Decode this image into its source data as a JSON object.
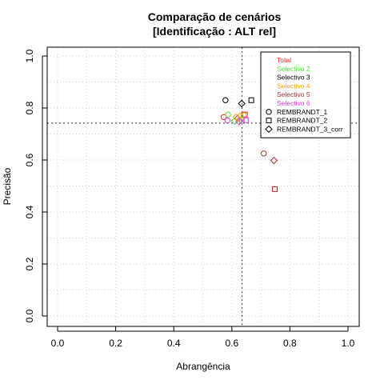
{
  "chart_data": {
    "type": "scatter",
    "title": "Comparação de cenários",
    "subtitle": "[Identificação : ALT rel]",
    "xlabel": "Abrangência",
    "ylabel": "Precisão",
    "xlim": [
      0,
      1
    ],
    "ylim": [
      0,
      1
    ],
    "xticks": [
      "0.0",
      "0.2",
      "0.4",
      "0.6",
      "0.8",
      "1.0"
    ],
    "yticks": [
      "0.0",
      "0.2",
      "0.4",
      "0.6",
      "0.8",
      "1.0"
    ],
    "grid": true,
    "reference_lines": {
      "vertical_x": 0.635,
      "horizontal_y": 0.742
    },
    "legend": {
      "placement": "top-right",
      "colour_entries": [
        {
          "label": "Total",
          "color": "#e5252a"
        },
        {
          "label": "Selectivo 2",
          "color": "#4ee33a"
        },
        {
          "label": "Selectivo 3",
          "color": "#000000"
        },
        {
          "label": "Selectivo 4",
          "color": "#f0a30f"
        },
        {
          "label": "Selectivo 5",
          "color": "#a3342b"
        },
        {
          "label": "Selectivo 6",
          "color": "#e03ae8"
        }
      ],
      "shape_entries": [
        {
          "label": "REMBRANDT_1",
          "shape": "circle"
        },
        {
          "label": "REMBRANDT_2",
          "shape": "square"
        },
        {
          "label": "REMBRANDT_3_corr",
          "shape": "diamond"
        }
      ]
    },
    "series": [
      {
        "name": "Total",
        "color": "#e5252a",
        "points": [
          {
            "shape": "circle",
            "x": 0.572,
            "y": 0.765
          },
          {
            "shape": "square",
            "x": 0.645,
            "y": 0.775
          },
          {
            "shape": "diamond",
            "x": 0.62,
            "y": 0.76
          }
        ]
      },
      {
        "name": "Selectivo 2",
        "color": "#4ee33a",
        "points": [
          {
            "shape": "circle",
            "x": 0.587,
            "y": 0.775
          },
          {
            "shape": "square",
            "x": 0.635,
            "y": 0.755
          },
          {
            "shape": "diamond",
            "x": 0.61,
            "y": 0.75
          }
        ]
      },
      {
        "name": "Selectivo 3",
        "color": "#000000",
        "points": [
          {
            "shape": "circle",
            "x": 0.578,
            "y": 0.83
          },
          {
            "shape": "square",
            "x": 0.667,
            "y": 0.83
          },
          {
            "shape": "diamond",
            "x": 0.634,
            "y": 0.817
          }
        ]
      },
      {
        "name": "Selectivo 4",
        "color": "#f0a30f",
        "points": [
          {
            "shape": "circle",
            "x": 0.63,
            "y": 0.77
          },
          {
            "shape": "square",
            "x": 0.64,
            "y": 0.772
          },
          {
            "shape": "diamond",
            "x": 0.615,
            "y": 0.765
          }
        ]
      },
      {
        "name": "Selectivo 5",
        "color": "#a3342b",
        "points": [
          {
            "shape": "circle",
            "x": 0.71,
            "y": 0.625
          },
          {
            "shape": "square",
            "x": 0.748,
            "y": 0.488
          },
          {
            "shape": "diamond",
            "x": 0.745,
            "y": 0.598
          }
        ]
      },
      {
        "name": "Selectivo 6",
        "color": "#e03ae8",
        "points": [
          {
            "shape": "circle",
            "x": 0.585,
            "y": 0.752
          },
          {
            "shape": "square",
            "x": 0.648,
            "y": 0.753
          },
          {
            "shape": "diamond",
            "x": 0.625,
            "y": 0.748
          }
        ]
      }
    ]
  }
}
